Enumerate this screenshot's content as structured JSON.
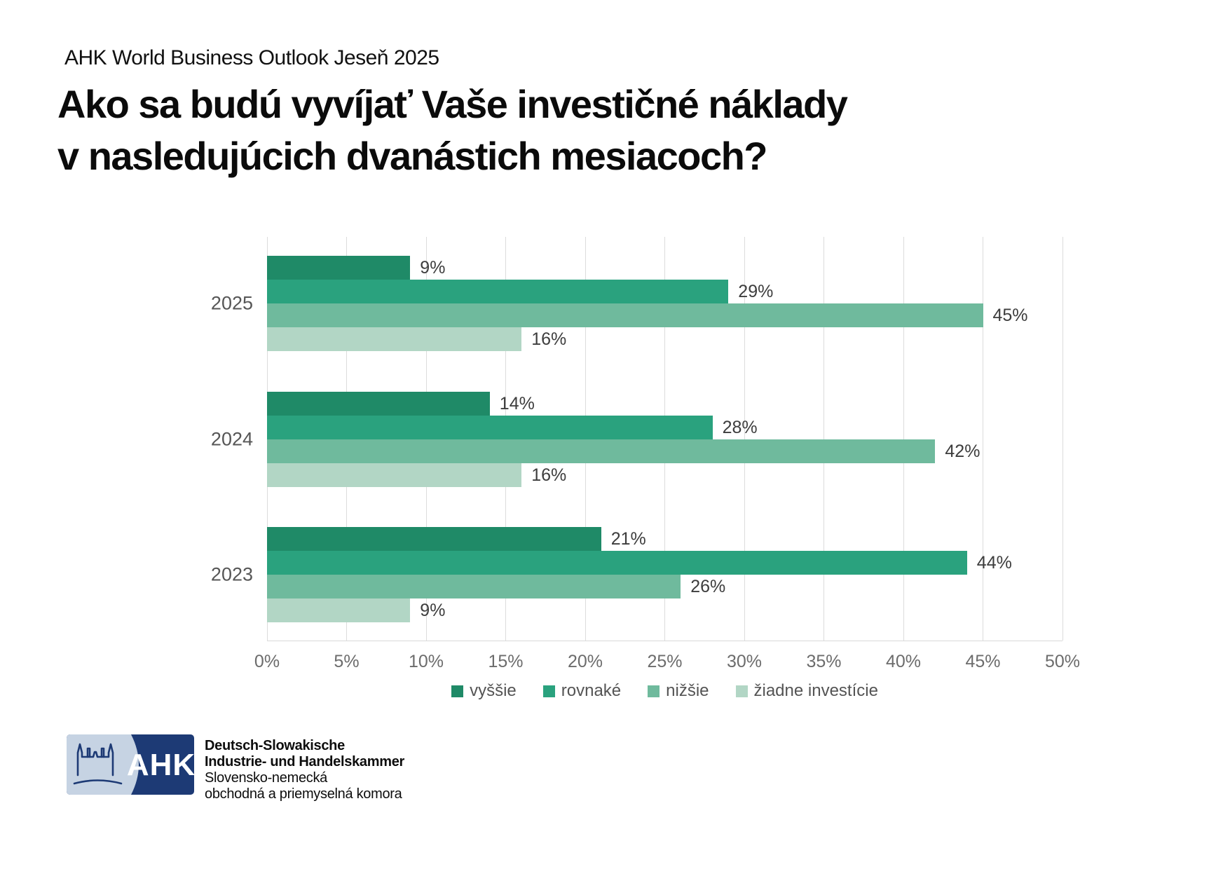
{
  "header": {
    "subtitle": "AHK World Business Outlook Jeseň 2025",
    "title_line1": "Ako sa budú vyvíjať Vaše investičné náklady",
    "title_line2": "v nasledujúcich dvanástich mesiacoch?"
  },
  "chart_data": {
    "type": "bar",
    "orientation": "horizontal",
    "categories": [
      "2025",
      "2024",
      "2023"
    ],
    "series": [
      {
        "name": "vyššie",
        "color": "#1f8a67",
        "values": [
          9,
          14,
          21
        ]
      },
      {
        "name": "rovnaké",
        "color": "#2aa27e",
        "values": [
          29,
          28,
          44
        ]
      },
      {
        "name": "nižšie",
        "color": "#6fba9d",
        "values": [
          45,
          42,
          26
        ]
      },
      {
        "name": "žiadne investície",
        "color": "#b2d6c5",
        "values": [
          16,
          16,
          9
        ]
      }
    ],
    "value_labels": [
      [
        "9%",
        "29%",
        "45%",
        "16%"
      ],
      [
        "14%",
        "28%",
        "42%",
        "16%"
      ],
      [
        "21%",
        "44%",
        "26%",
        "9%"
      ]
    ],
    "xlim": [
      0,
      50
    ],
    "xticks": [
      "0%",
      "5%",
      "10%",
      "15%",
      "20%",
      "25%",
      "30%",
      "35%",
      "40%",
      "45%",
      "50%"
    ],
    "value_suffix": "%",
    "grid": "vertical",
    "legend_position": "bottom",
    "gridline_color": "#dcdcdc"
  },
  "footer": {
    "logo": {
      "abbr": "AHK",
      "navy": "#1d3a75",
      "light_blue": "#c6d3e3",
      "lines": [
        "Deutsch-Slowakische",
        "Industrie- und Handelskammer",
        "Slovensko-nemecká",
        "obchodná a priemyselná komora"
      ]
    }
  }
}
